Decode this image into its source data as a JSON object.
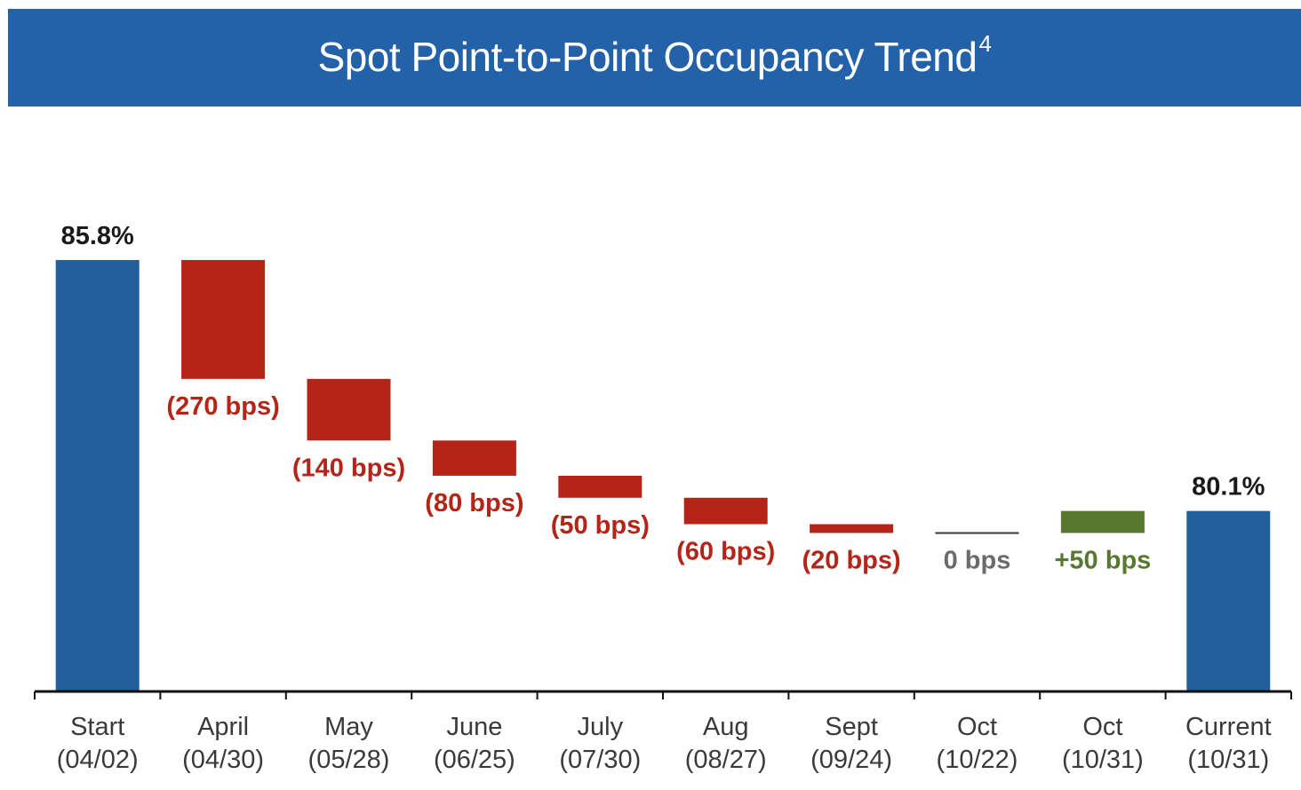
{
  "header": {
    "title": "Spot Point-to-Point Occupancy Trend",
    "footnote": "4"
  },
  "colors": {
    "header_bg": "#2362a8",
    "total": "#235f9c",
    "decrease": "#b42417",
    "increase": "#59782f",
    "neutral": "#6b6b6b",
    "total_label": "#1a1a1a",
    "axis": "#111111"
  },
  "chart_data": {
    "type": "bar",
    "subtype": "waterfall",
    "unit": "%",
    "categories": [
      [
        "Start",
        "(04/02)"
      ],
      [
        "April",
        "(04/30)"
      ],
      [
        "May",
        "(05/28)"
      ],
      [
        "June",
        "(06/25)"
      ],
      [
        "July",
        "(07/30)"
      ],
      [
        "Aug",
        "(08/27)"
      ],
      [
        "Sept",
        "(09/24)"
      ],
      [
        "Oct",
        "(10/22)"
      ],
      [
        "Oct",
        "(10/31)"
      ],
      [
        "Current",
        "(10/31)"
      ]
    ],
    "steps": [
      {
        "kind": "total",
        "value": 85.8,
        "label": "85.8%"
      },
      {
        "kind": "decrease",
        "value": -2.7,
        "label": "(270 bps)"
      },
      {
        "kind": "decrease",
        "value": -1.4,
        "label": "(140 bps)"
      },
      {
        "kind": "decrease",
        "value": -0.8,
        "label": "(80 bps)"
      },
      {
        "kind": "decrease",
        "value": -0.5,
        "label": "(50 bps)"
      },
      {
        "kind": "decrease",
        "value": -0.6,
        "label": "(60 bps)"
      },
      {
        "kind": "decrease",
        "value": -0.2,
        "label": "(20 bps)"
      },
      {
        "kind": "neutral",
        "value": 0.0,
        "label": "0 bps"
      },
      {
        "kind": "increase",
        "value": 0.5,
        "label": "+50 bps"
      },
      {
        "kind": "total",
        "value": 80.1,
        "label": "80.1%"
      }
    ],
    "ylim": [
      76.0,
      85.9
    ],
    "grid": false,
    "legend": "none"
  }
}
